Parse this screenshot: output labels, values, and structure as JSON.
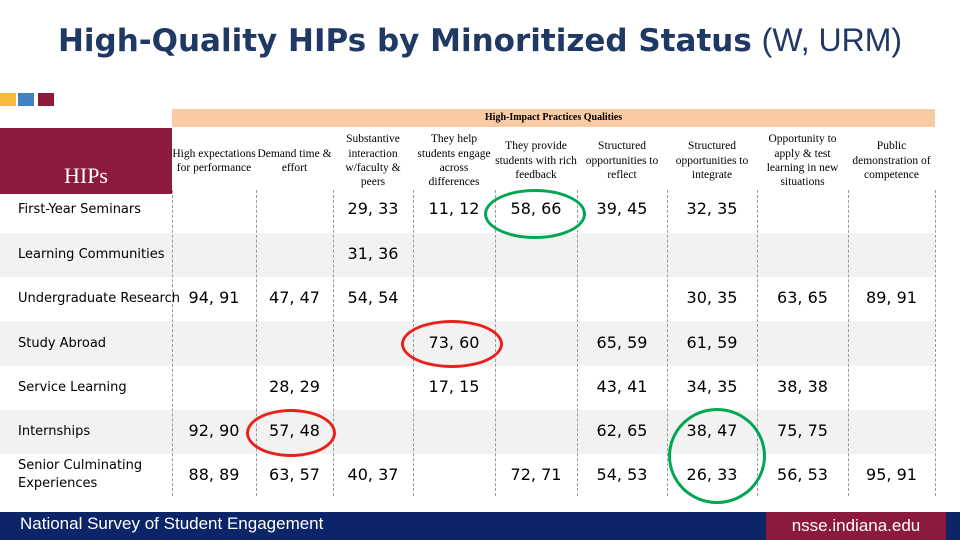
{
  "title": {
    "bold": "High-Quality HIPs by Minoritized Status",
    "regular": "(W, URM)"
  },
  "band_label": "High-Impact Practices Qualities",
  "hips_label": "HIPs",
  "columns": [
    "High expectations for performance",
    "Demand time & effort",
    "Substantive interaction w/faculty & peers",
    "They help students engage across differences",
    "They provide students with rich feedback",
    "Structured opportunities to reflect",
    "Structured opportunities to integrate",
    "Opportunity to apply & test learning in new situations",
    "Public demonstration of competence"
  ],
  "rows": [
    {
      "label": "First-Year Seminars",
      "cells": [
        "",
        "",
        "29, 33",
        "11, 12",
        "58, 66",
        "39, 45",
        "32, 35",
        "",
        ""
      ]
    },
    {
      "label": "Learning Communities",
      "cells": [
        "",
        "",
        "31, 36",
        "",
        "",
        "",
        "",
        "",
        ""
      ]
    },
    {
      "label": "Undergraduate Research",
      "cells": [
        "94, 91",
        "47, 47",
        "54, 54",
        "",
        "",
        "",
        "30, 35",
        "63, 65",
        "89, 91"
      ]
    },
    {
      "label": "Study Abroad",
      "cells": [
        "",
        "",
        "",
        "73, 60",
        "",
        "65, 59",
        "61, 59",
        "",
        ""
      ]
    },
    {
      "label": "Service Learning",
      "cells": [
        "",
        "28, 29",
        "",
        "17, 15",
        "",
        "43, 41",
        "34, 35",
        "38, 38",
        ""
      ]
    },
    {
      "label": "Internships",
      "cells": [
        "92, 90",
        "57, 48",
        "",
        "",
        "",
        "62, 65",
        "38, 47",
        "75, 75",
        ""
      ]
    },
    {
      "label": "Senior Culminating Experiences",
      "cells": [
        "88, 89",
        "63, 57",
        "40, 37",
        "",
        "72, 71",
        "54, 53",
        "26, 33",
        "56, 53",
        "95, 91"
      ]
    }
  ],
  "highlights": {
    "green": "#00a651",
    "red": "#e8211a"
  },
  "footer": {
    "left": "National Survey of Student Engagement",
    "right": "nsse.indiana.edu"
  },
  "colors": {
    "title": "#1f3864",
    "maroon": "#8b1a3b",
    "navy": "#0c2468",
    "band": "#f8cba5",
    "stripe": "#f2f2f2"
  }
}
